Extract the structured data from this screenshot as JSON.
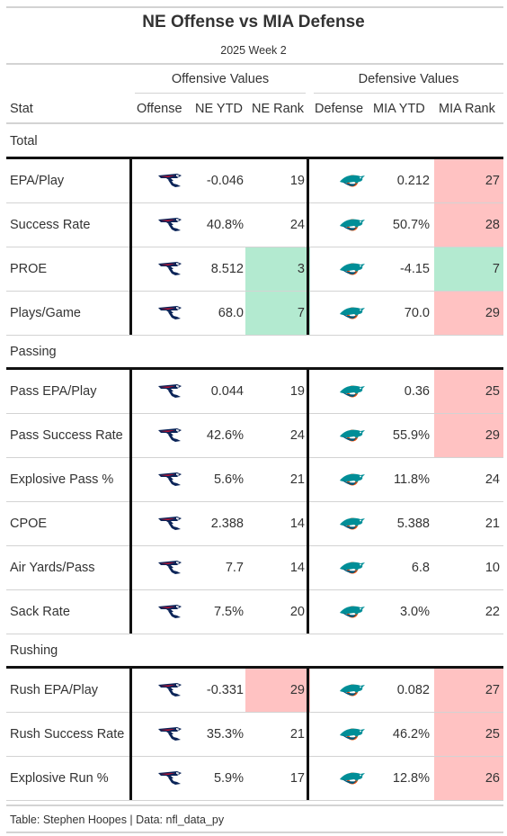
{
  "title": "NE Offense vs MIA Defense",
  "subtitle": "2025 Week 2",
  "spanners": {
    "offense": "Offensive Values",
    "defense": "Defensive Values"
  },
  "columns": {
    "stat": "Stat",
    "offense": "Offense",
    "ne_ytd": "NE YTD",
    "ne_rank": "NE Rank",
    "defense": "Defense",
    "mia_ytd": "MIA YTD",
    "mia_rank": "MIA Rank"
  },
  "colors": {
    "good": "#b3ead0",
    "bad": "#ffc2c2",
    "border_dark": "#111111",
    "rule": "#d3d3d3",
    "ne_navy": "#0b2458",
    "ne_red": "#c8102e",
    "mia_aqua": "#008e97",
    "mia_orange": "#fc4c02"
  },
  "icons": {
    "offense_logo": "patriots-logo-icon",
    "defense_logo": "dolphins-logo-icon"
  },
  "chart_data": {
    "type": "table",
    "groups": [
      {
        "name": "Total",
        "rows": [
          {
            "stat": "EPA/Play",
            "ne_ytd": "-0.046",
            "ne_rank": "19",
            "ne_rank_color": "",
            "mia_ytd": "0.212",
            "mia_rank": "27",
            "mia_rank_color": "bad"
          },
          {
            "stat": "Success Rate",
            "ne_ytd": "40.8%",
            "ne_rank": "24",
            "ne_rank_color": "",
            "mia_ytd": "50.7%",
            "mia_rank": "28",
            "mia_rank_color": "bad"
          },
          {
            "stat": "PROE",
            "ne_ytd": "8.512",
            "ne_rank": "3",
            "ne_rank_color": "good",
            "mia_ytd": "-4.15",
            "mia_rank": "7",
            "mia_rank_color": "good"
          },
          {
            "stat": "Plays/Game",
            "ne_ytd": "68.0",
            "ne_rank": "7",
            "ne_rank_color": "good",
            "mia_ytd": "70.0",
            "mia_rank": "29",
            "mia_rank_color": "bad"
          }
        ]
      },
      {
        "name": "Passing",
        "rows": [
          {
            "stat": "Pass EPA/Play",
            "ne_ytd": "0.044",
            "ne_rank": "19",
            "ne_rank_color": "",
            "mia_ytd": "0.36",
            "mia_rank": "25",
            "mia_rank_color": "bad"
          },
          {
            "stat": "Pass Success Rate",
            "ne_ytd": "42.6%",
            "ne_rank": "24",
            "ne_rank_color": "",
            "mia_ytd": "55.9%",
            "mia_rank": "29",
            "mia_rank_color": "bad"
          },
          {
            "stat": "Explosive Pass %",
            "ne_ytd": "5.6%",
            "ne_rank": "21",
            "ne_rank_color": "",
            "mia_ytd": "11.8%",
            "mia_rank": "24",
            "mia_rank_color": ""
          },
          {
            "stat": "CPOE",
            "ne_ytd": "2.388",
            "ne_rank": "14",
            "ne_rank_color": "",
            "mia_ytd": "5.388",
            "mia_rank": "21",
            "mia_rank_color": ""
          },
          {
            "stat": "Air Yards/Pass",
            "ne_ytd": "7.7",
            "ne_rank": "14",
            "ne_rank_color": "",
            "mia_ytd": "6.8",
            "mia_rank": "10",
            "mia_rank_color": ""
          },
          {
            "stat": "Sack Rate",
            "ne_ytd": "7.5%",
            "ne_rank": "20",
            "ne_rank_color": "",
            "mia_ytd": "3.0%",
            "mia_rank": "22",
            "mia_rank_color": ""
          }
        ]
      },
      {
        "name": "Rushing",
        "rows": [
          {
            "stat": "Rush EPA/Play",
            "ne_ytd": "-0.331",
            "ne_rank": "29",
            "ne_rank_color": "bad",
            "mia_ytd": "0.082",
            "mia_rank": "27",
            "mia_rank_color": "bad"
          },
          {
            "stat": "Rush Success Rate",
            "ne_ytd": "35.3%",
            "ne_rank": "21",
            "ne_rank_color": "",
            "mia_ytd": "46.2%",
            "mia_rank": "25",
            "mia_rank_color": "bad"
          },
          {
            "stat": "Explosive Run %",
            "ne_ytd": "5.9%",
            "ne_rank": "17",
            "ne_rank_color": "",
            "mia_ytd": "12.8%",
            "mia_rank": "26",
            "mia_rank_color": "bad"
          }
        ]
      }
    ]
  },
  "source_note": "Table: Stephen Hoopes | Data: nfl_data_py"
}
